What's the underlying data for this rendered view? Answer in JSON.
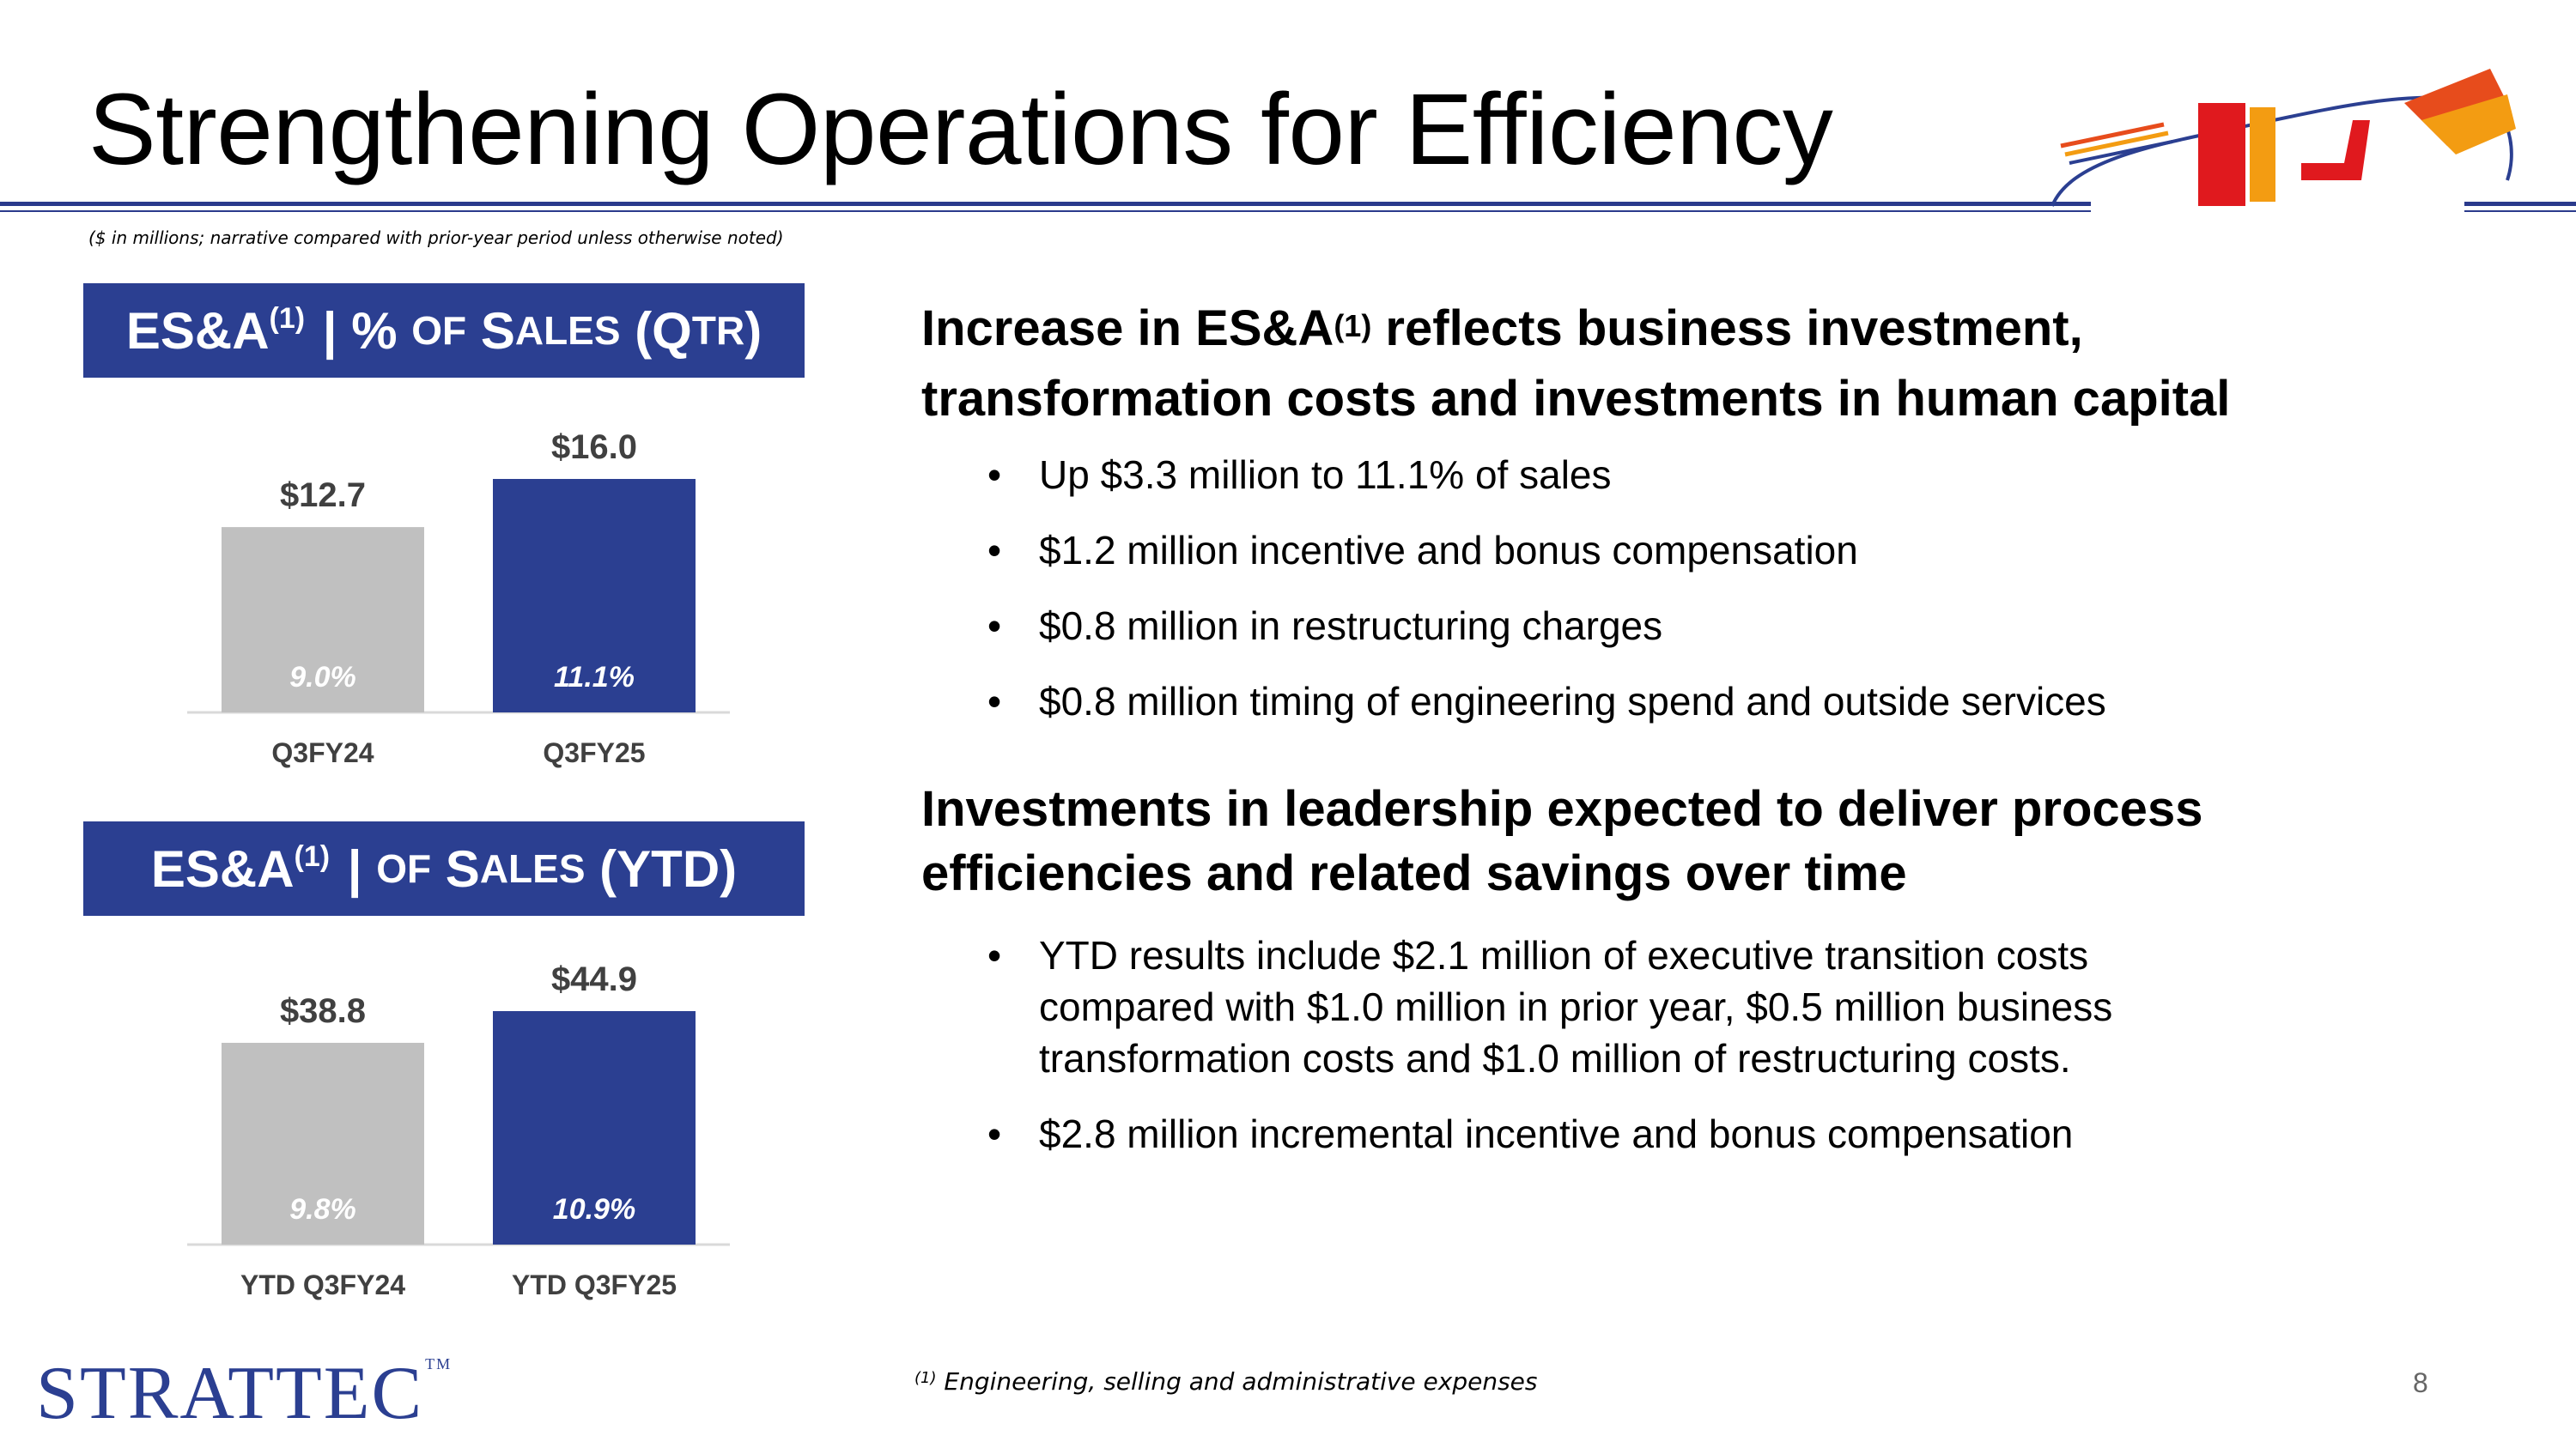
{
  "header": {
    "title": "Strengthening Operations for Efficiency",
    "note": "($ in millions; narrative compared with prior-year period unless otherwise noted)"
  },
  "banners": {
    "qtr": {
      "main": "ES&A",
      "sup": "(1)",
      "sep": " | % ",
      "of": "OF",
      "s": "S",
      "ales": "ALES",
      "paren_open": " (Q",
      "tr": "TR",
      "paren_close": ")"
    },
    "ytd": {
      "main": "ES&A",
      "sup": "(1)",
      "sep": " | ",
      "of": "OF",
      "s": "S",
      "ales": "ALES",
      "tail": " (YTD)"
    }
  },
  "chart_data": [
    {
      "type": "bar",
      "title": "ES&A | % of Sales (QTR)",
      "categories": [
        "Q3FY24",
        "Q3FY25"
      ],
      "values": [
        12.7,
        16.0
      ],
      "value_labels": [
        "$12.7",
        "$16.0"
      ],
      "pct_labels": [
        "9.0%",
        "11.1%"
      ],
      "colors": [
        "#c0c0c0",
        "#2b3f91"
      ],
      "ylim": [
        0,
        16.0
      ]
    },
    {
      "type": "bar",
      "title": "ES&A | of Sales (YTD)",
      "categories": [
        "YTD Q3FY24",
        "YTD Q3FY25"
      ],
      "values": [
        38.8,
        44.9
      ],
      "value_labels": [
        "$38.8",
        "$44.9"
      ],
      "pct_labels": [
        "9.8%",
        "10.9%"
      ],
      "colors": [
        "#c0c0c0",
        "#2b3f91"
      ],
      "ylim": [
        0,
        44.9
      ]
    }
  ],
  "section1": {
    "heading_line1_a": "Increase in ES&A",
    "heading_sup": "(1)",
    "heading_line1_b": " reflects business investment,",
    "heading_line2": "transformation costs and investments in human capital",
    "bullets": [
      "Up $3.3 million to 11.1% of sales",
      "$1.2 million incentive and bonus compensation",
      "$0.8 million in restructuring charges",
      "$0.8 million timing of engineering spend and outside services"
    ]
  },
  "section2": {
    "heading_line1": "Investments in leadership expected to deliver process",
    "heading_line2": "efficiencies and related savings over time",
    "bullet1_line1": "YTD results include $2.1 million of executive transition costs",
    "bullet1_line2": "compared with $1.0 million in prior year, $0.5 million business",
    "bullet1_line3": "transformation costs and $1.0 million of restructuring costs.",
    "bullet2": "$2.8 million incremental incentive and bonus compensation"
  },
  "footer": {
    "footnote_sup": "(1)",
    "footnote": " Engineering, selling and administrative expenses",
    "page": "8",
    "brand": "STRATTEC",
    "brand_tm": "TM"
  }
}
